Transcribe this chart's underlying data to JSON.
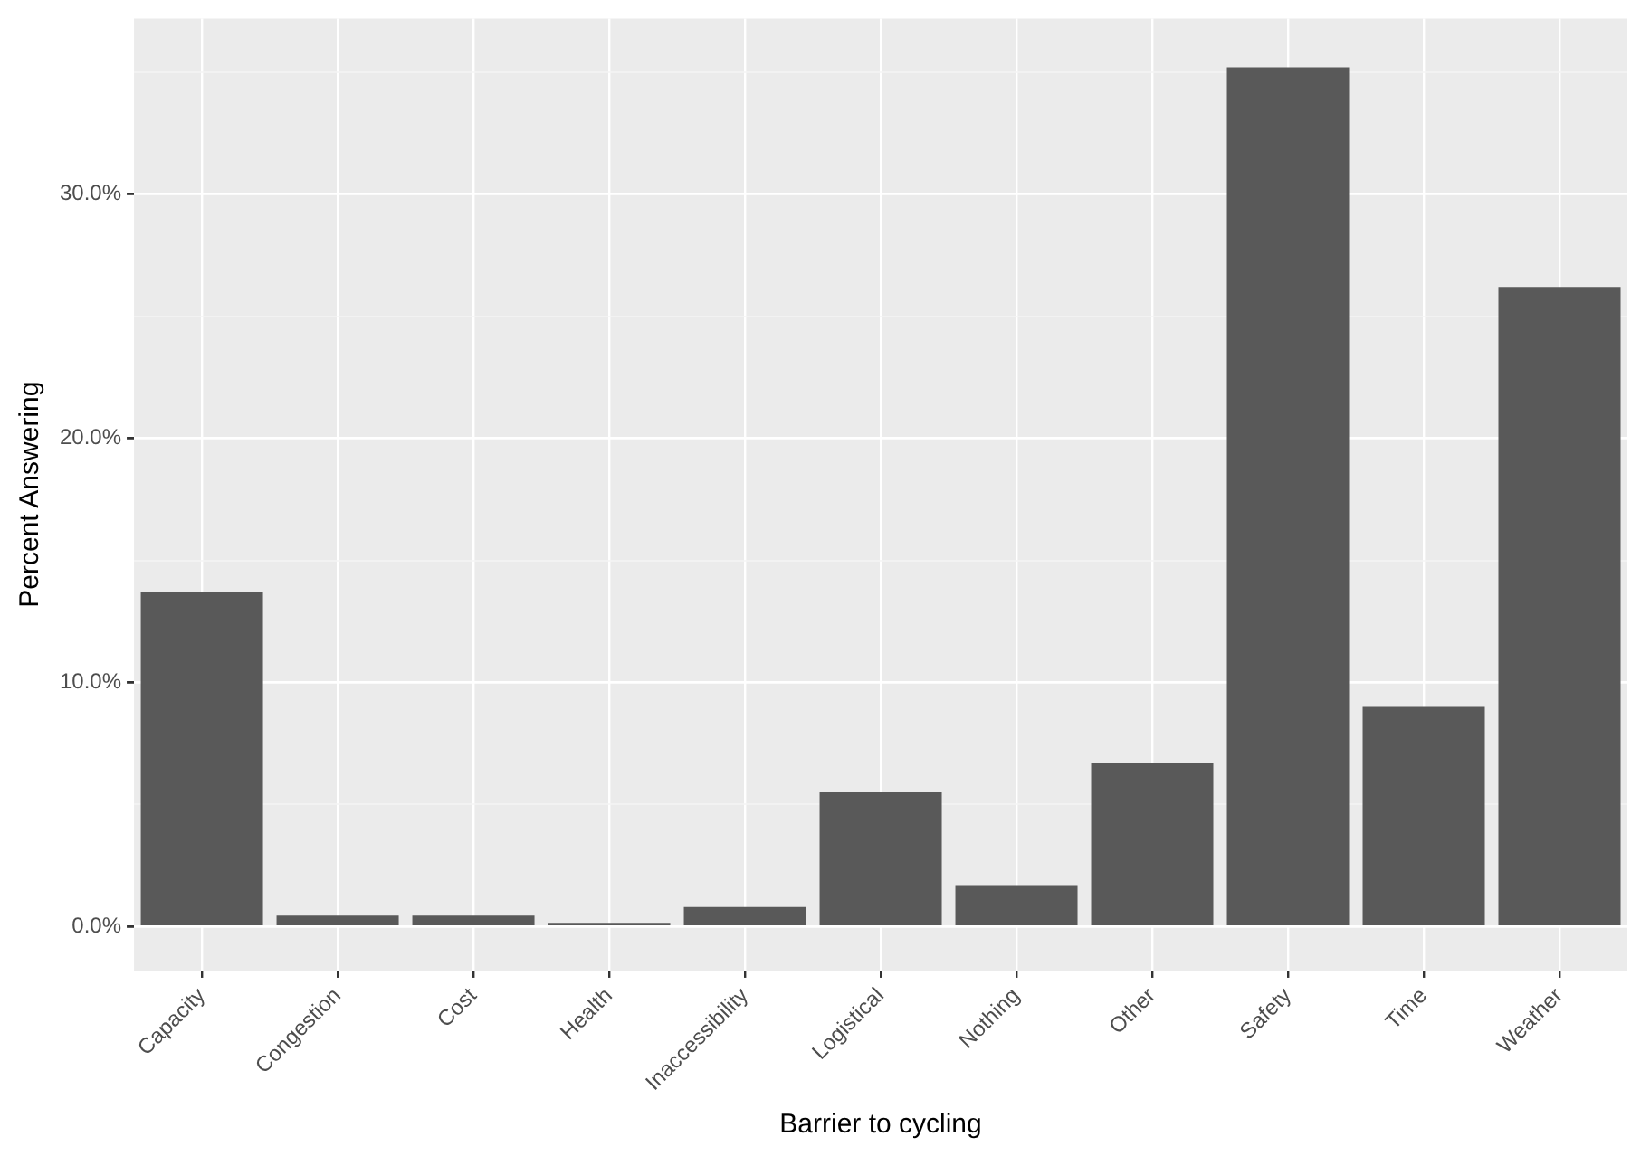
{
  "chart_data": {
    "type": "bar",
    "xlabel": "Barrier to cycling",
    "ylabel": "Percent Answering",
    "categories": [
      "Capacity",
      "Congestion",
      "Cost",
      "Health",
      "Inaccessibility",
      "Logistical",
      "Nothing",
      "Other",
      "Safety",
      "Time",
      "Weather"
    ],
    "values": [
      13.7,
      0.45,
      0.45,
      0.15,
      0.8,
      5.5,
      1.7,
      6.7,
      35.2,
      9.0,
      26.2
    ],
    "color": "#595959",
    "ylim": [
      -1.8,
      37.2
    ],
    "yticks": [
      {
        "value": 0,
        "label": "0.0%"
      },
      {
        "value": 5,
        "label": null
      },
      {
        "value": 10,
        "label": "10.0%"
      },
      {
        "value": 15,
        "label": null
      },
      {
        "value": 20,
        "label": "20.0%"
      },
      {
        "value": 25,
        "label": null
      },
      {
        "value": 30,
        "label": "30.0%"
      },
      {
        "value": 35,
        "label": null
      }
    ],
    "grid": true
  }
}
